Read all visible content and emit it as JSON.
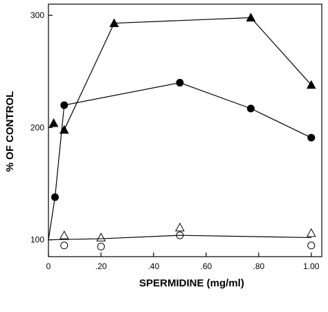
{
  "chart_data": {
    "type": "line",
    "title": "",
    "xlabel": "SPERMIDINE (mg/ml)",
    "ylabel": "% OF CONTROL",
    "xlim": [
      0,
      1.04
    ],
    "ylim": [
      85,
      310
    ],
    "x_ticks": [
      0,
      0.2,
      0.4,
      0.6,
      0.8,
      1.0
    ],
    "x_tick_labels": [
      "0",
      ".20",
      ".40",
      ".60",
      ".80",
      "1.00"
    ],
    "y_ticks": [
      100,
      200,
      300
    ],
    "y_tick_labels": [
      "100",
      "200",
      "300"
    ],
    "grid": false,
    "legend": "none",
    "series": [
      {
        "marker": "filled-triangle",
        "x": [
          0.02,
          0.06,
          0.25,
          0.77,
          1.0
        ],
        "y": [
          204,
          198,
          293,
          298,
          238
        ],
        "connected_from": 1
      },
      {
        "marker": "filled-circle",
        "x": [
          0.0,
          0.025,
          0.06,
          0.5,
          0.77,
          1.0
        ],
        "y": [
          100,
          138,
          220,
          240,
          217,
          191
        ],
        "connected_from": 0
      },
      {
        "marker": "open-triangle",
        "x": [
          0.06,
          0.2,
          0.5,
          1.0
        ],
        "y": [
          104,
          102,
          111,
          106
        ],
        "connected_from": -1
      },
      {
        "marker": "open-circle",
        "x": [
          0.06,
          0.2,
          0.5,
          1.0
        ],
        "y": [
          95,
          94,
          104,
          95
        ],
        "connected_from": -1
      },
      {
        "marker": "line-only",
        "x": [
          0.0,
          0.2,
          0.5,
          1.0
        ],
        "y": [
          100,
          101,
          104,
          102
        ],
        "connected_from": 0
      }
    ]
  }
}
